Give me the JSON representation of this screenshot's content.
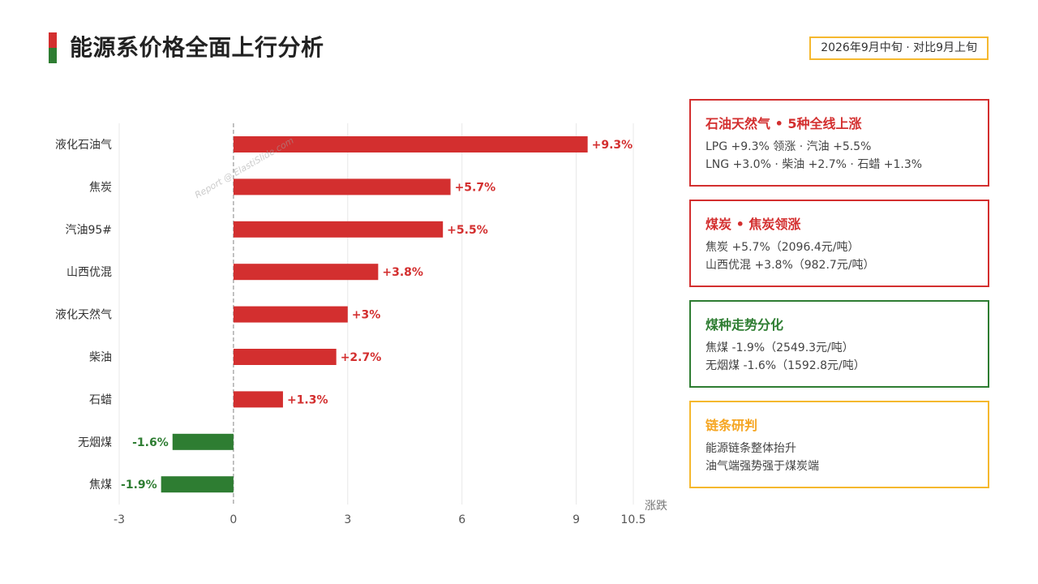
{
  "header": {
    "title": "能源系价格全面上行分析",
    "period": "2026年9月中旬 · 对比9月上旬"
  },
  "colors": {
    "up": "#d32f2f",
    "down": "#2e7d32",
    "accent": "#f5b82e",
    "yellow_title": "#f5a623"
  },
  "watermark": "Report @ ElastiSlide.com",
  "chart_data": {
    "type": "bar",
    "orientation": "horizontal",
    "categories": [
      "液化石油气",
      "焦炭",
      "汽油95#",
      "山西优混",
      "液化天然气",
      "柴油",
      "石蜡",
      "无烟煤",
      "焦煤"
    ],
    "values": [
      9.3,
      5.7,
      5.5,
      3.8,
      3.0,
      2.7,
      1.3,
      -1.6,
      -1.9
    ],
    "data_labels": [
      "+9.3%",
      "+5.7%",
      "+5.5%",
      "+3.8%",
      "+3%",
      "+2.7%",
      "+1.3%",
      "-1.6%",
      "-1.9%"
    ],
    "xlim": [
      -3,
      10.5
    ],
    "xticks": [
      -3,
      0,
      3,
      6,
      9,
      10.5
    ],
    "xtick_labels": [
      "-3",
      "0",
      "3",
      "6",
      "9",
      "10.5"
    ],
    "xlabel": "涨跌",
    "grid": "vertical"
  },
  "cards": [
    {
      "title": "石油天然气 • 5种全线上涨",
      "title_color": "#d32f2f",
      "border_color": "#d32f2f",
      "lines": [
        "LPG +9.3% 领涨 · 汽油 +5.5%",
        "LNG +3.0% · 柴油 +2.7% · 石蜡 +1.3%"
      ]
    },
    {
      "title": "煤炭 • 焦炭领涨",
      "title_color": "#d32f2f",
      "border_color": "#d32f2f",
      "lines": [
        "焦炭 +5.7%（2096.4元/吨）",
        "山西优混 +3.8%（982.7元/吨）"
      ]
    },
    {
      "title": "煤种走势分化",
      "title_color": "#2e7d32",
      "border_color": "#2e7d32",
      "lines": [
        "焦煤 -1.9%（2549.3元/吨）",
        "无烟煤 -1.6%（1592.8元/吨）"
      ]
    },
    {
      "title": "链条研判",
      "title_color": "#f5a623",
      "border_color": "#f5b82e",
      "lines": [
        "能源链条整体抬升",
        "油气端强势强于煤炭端"
      ]
    }
  ]
}
